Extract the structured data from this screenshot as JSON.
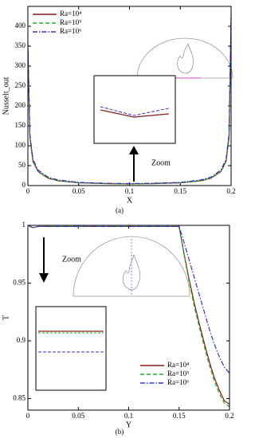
{
  "chart_data": [
    {
      "type": "line",
      "xlabel": "X",
      "ylabel": "Nusselt_out",
      "annotation": "Zoom",
      "caption": "(a)",
      "legend": "upper left",
      "xlim": [
        0,
        0.2
      ],
      "xticks": [
        0,
        0.05,
        0.1,
        0.15,
        0.2
      ],
      "ylim": [
        0,
        450
      ],
      "yticks": [
        0,
        50,
        100,
        150,
        200,
        250,
        300,
        350,
        400
      ],
      "x": [
        0,
        0.002,
        0.005,
        0.01,
        0.02,
        0.03,
        0.05,
        0.075,
        0.1,
        0.125,
        0.15,
        0.17,
        0.18,
        0.19,
        0.195,
        0.198,
        0.2
      ],
      "series": [
        {
          "name": "Ra=10⁴",
          "color": "#8b1a1a",
          "style": "solid",
          "values": [
            340,
            120,
            60,
            35,
            18,
            12,
            7,
            5,
            4,
            5,
            7,
            12,
            18,
            35,
            60,
            120,
            410
          ]
        },
        {
          "name": "Ra=10⁵",
          "color": "#22aa22",
          "style": "dashed",
          "values": [
            345,
            122,
            62,
            36,
            19,
            12,
            7,
            5,
            4,
            5,
            7,
            12,
            19,
            36,
            62,
            125,
            420
          ]
        },
        {
          "name": "Ra=10⁶",
          "color": "#3333cc",
          "style": "dashdot",
          "values": [
            360,
            128,
            66,
            39,
            21,
            14,
            8,
            6,
            5,
            6,
            8,
            14,
            21,
            39,
            66,
            130,
            435
          ]
        }
      ]
    },
    {
      "type": "line",
      "xlabel": "Y",
      "ylabel": "T",
      "annotation": "Zoom",
      "caption": "(b)",
      "legend": "lower right",
      "xlim": [
        0,
        0.2
      ],
      "xticks": [
        0,
        0.05,
        0.1,
        0.15,
        0.2
      ],
      "ylim": [
        0.84,
        1.0
      ],
      "yticks": [
        0.85,
        0.9,
        0.95,
        1
      ],
      "x": [
        0,
        0.005,
        0.01,
        0.02,
        0.05,
        0.1,
        0.15,
        0.155,
        0.16,
        0.165,
        0.17,
        0.175,
        0.18,
        0.185,
        0.19,
        0.195,
        0.2
      ],
      "series": [
        {
          "name": "Ra=10⁴",
          "color": "#8b1a1a",
          "style": "solid",
          "values": [
            1,
            0.998,
            0.999,
            0.999,
            0.999,
            0.999,
            0.999,
            0.975,
            0.953,
            0.933,
            0.915,
            0.898,
            0.882,
            0.868,
            0.857,
            0.848,
            0.845
          ]
        },
        {
          "name": "Ra=10⁵",
          "color": "#22aa22",
          "style": "dashed",
          "values": [
            1,
            0.998,
            0.999,
            0.999,
            0.999,
            0.999,
            0.999,
            0.974,
            0.951,
            0.93,
            0.912,
            0.895,
            0.879,
            0.865,
            0.854,
            0.846,
            0.843
          ]
        },
        {
          "name": "Ra=10⁶",
          "color": "#3333cc",
          "style": "dashdot",
          "values": [
            1,
            0.998,
            0.999,
            0.999,
            0.999,
            0.999,
            0.999,
            0.985,
            0.97,
            0.955,
            0.94,
            0.925,
            0.91,
            0.897,
            0.886,
            0.877,
            0.872
          ]
        }
      ]
    }
  ]
}
